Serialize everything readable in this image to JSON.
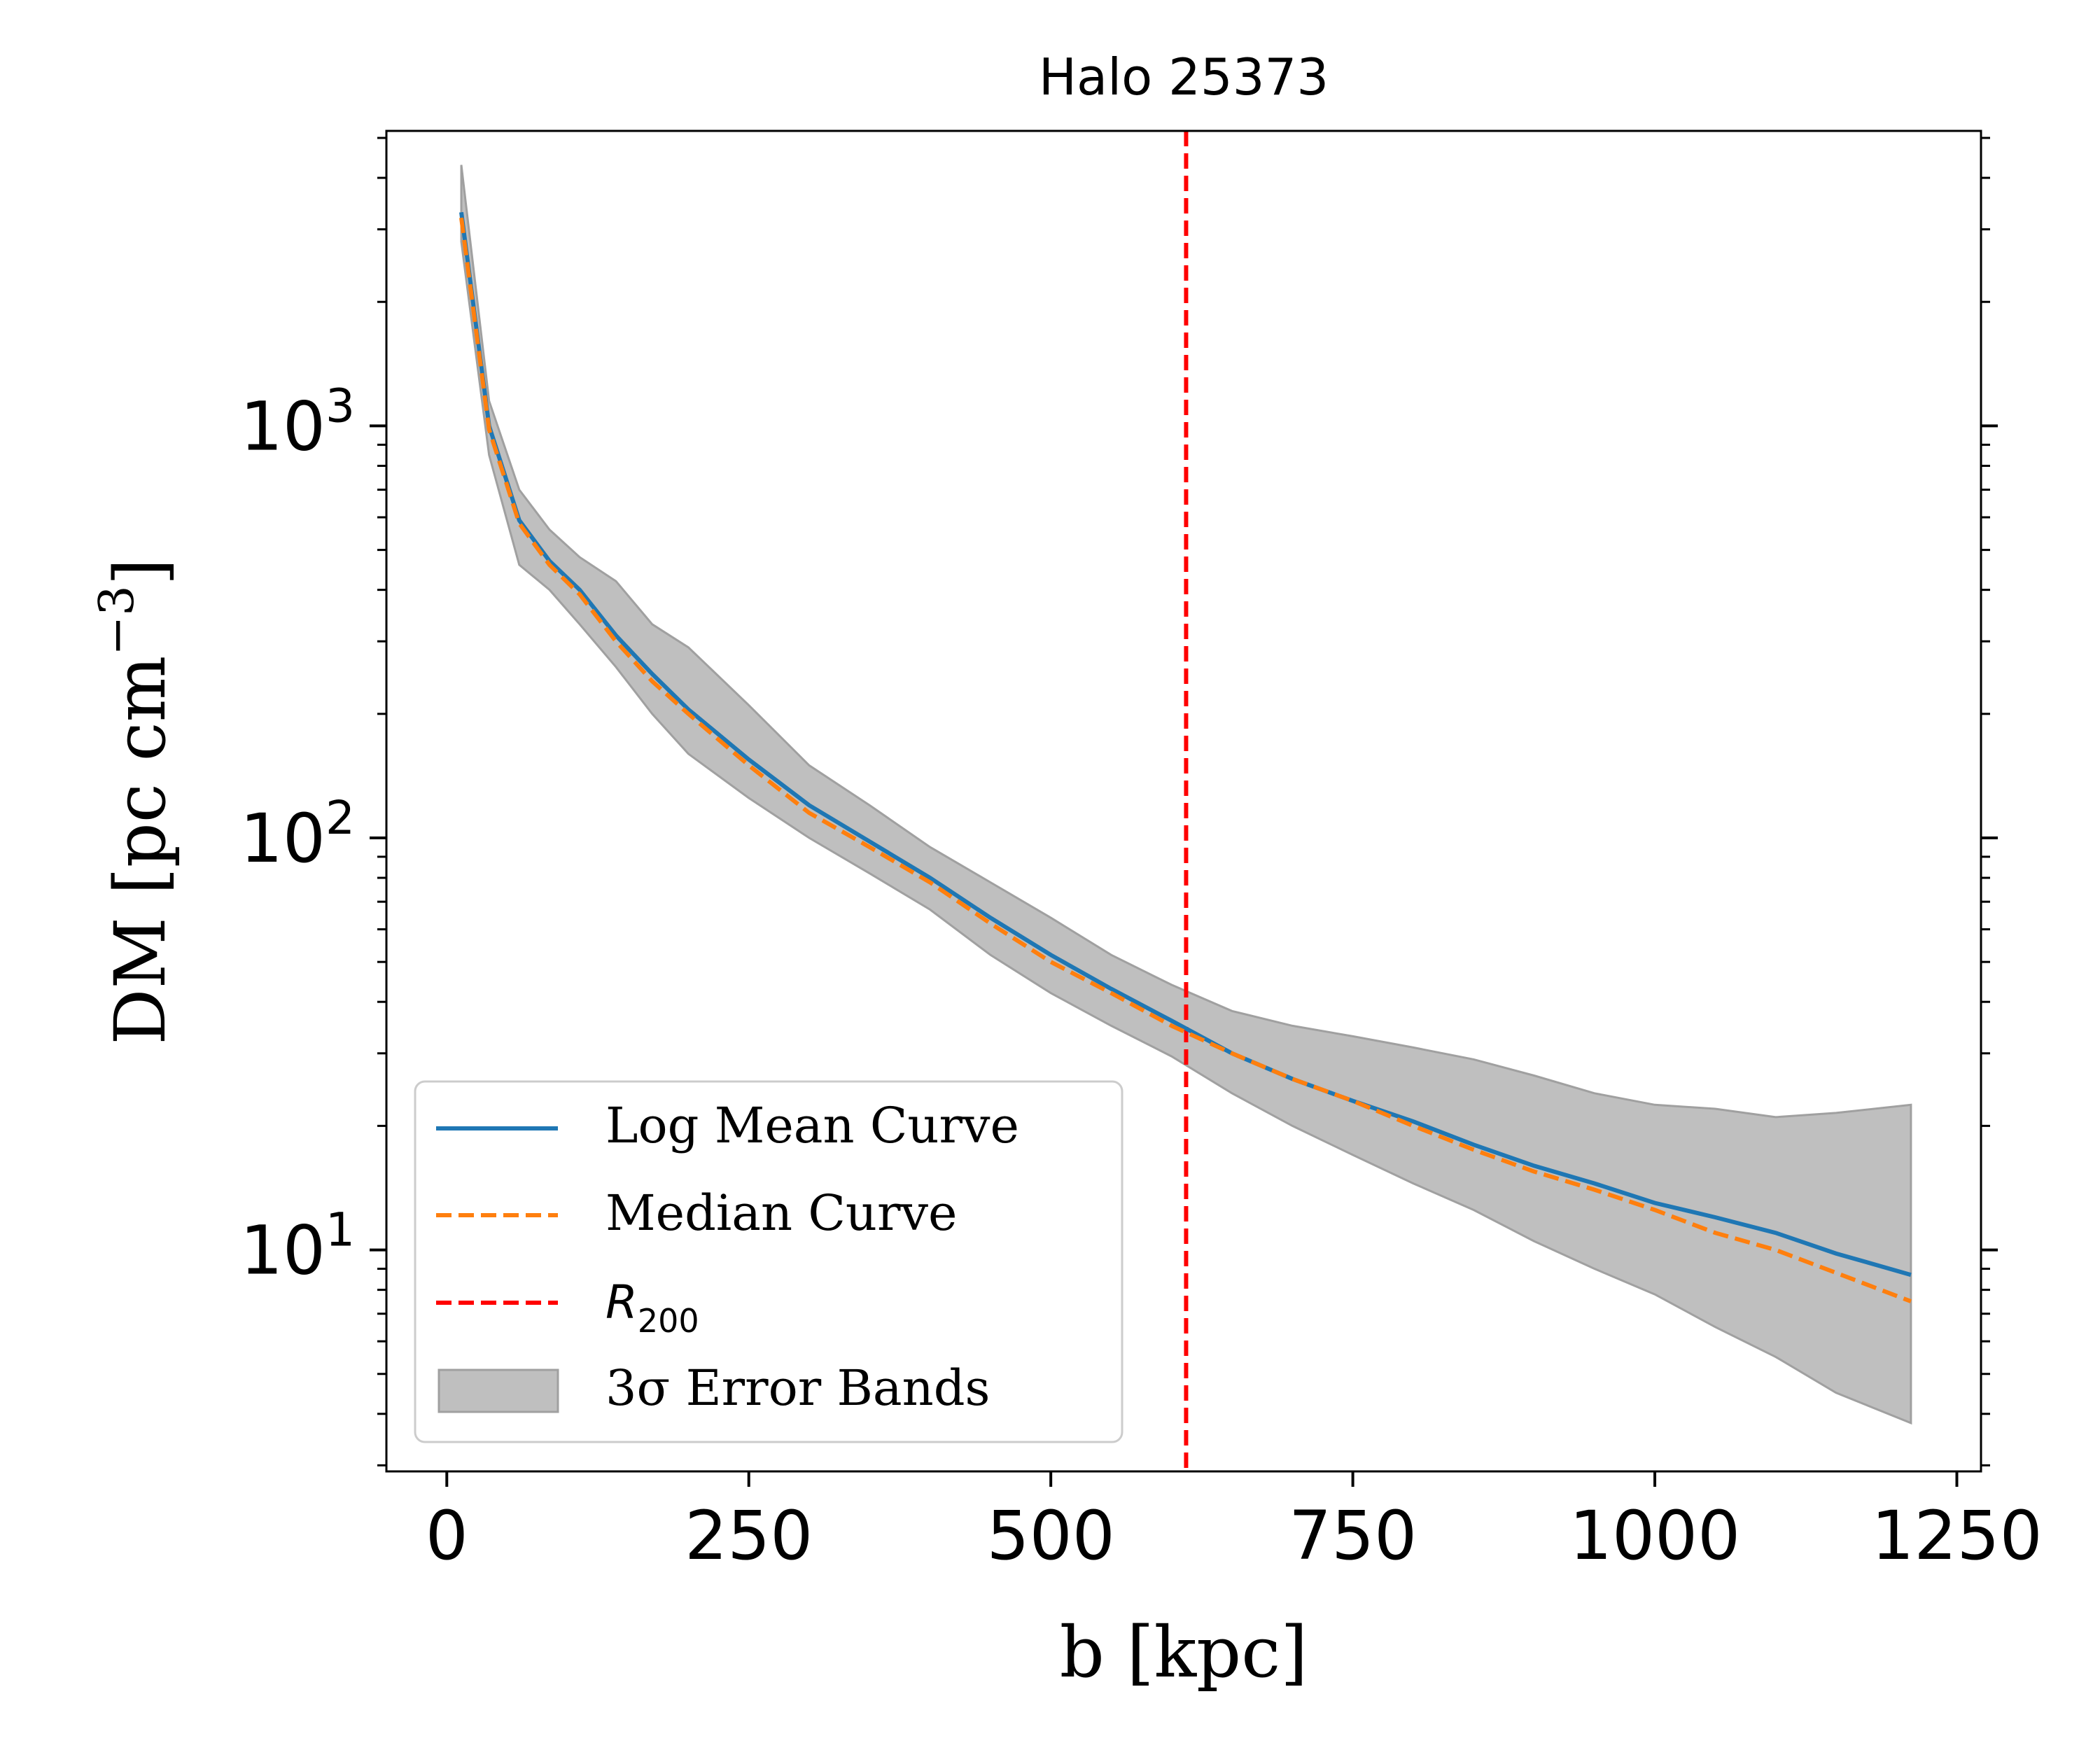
{
  "chart_data": {
    "type": "line",
    "title": "Halo 25373",
    "xlabel": "b [kpc]",
    "ylabel": {
      "main": "DM [pc cm",
      "sup": "−3",
      "end": "]"
    },
    "xlim": [
      -50,
      1270
    ],
    "ylim": [
      2.9,
      5200
    ],
    "yscale": "log",
    "grid": false,
    "legend_position": "lower-left",
    "xticks": [
      0,
      250,
      500,
      750,
      1000,
      1250
    ],
    "xtick_labels": [
      "0",
      "250",
      "500",
      "750",
      "1000",
      "1250"
    ],
    "yticks": [
      10,
      100,
      1000
    ],
    "ytick_labels": [
      {
        "base": "10",
        "exp": "1"
      },
      {
        "base": "10",
        "exp": "2"
      },
      {
        "base": "10",
        "exp": "3"
      }
    ],
    "x": [
      12,
      35,
      60,
      85,
      110,
      140,
      170,
      200,
      250,
      300,
      350,
      400,
      450,
      500,
      550,
      600,
      650,
      700,
      750,
      800,
      850,
      900,
      950,
      1000,
      1050,
      1100,
      1150,
      1212
    ],
    "series": [
      {
        "name": "Log Mean Curve",
        "color": "#1f77b4",
        "style": "solid",
        "values": [
          3300,
          1000,
          590,
          470,
          400,
          310,
          250,
          205,
          155,
          120,
          98,
          80,
          64,
          52,
          43,
          36,
          30,
          26,
          23,
          20.5,
          18,
          16,
          14.5,
          13,
          12,
          11,
          9.8,
          8.7
        ]
      },
      {
        "name": "Median Curve",
        "color": "#ff7f0e",
        "style": "dashed",
        "values": [
          3200,
          980,
          580,
          460,
          390,
          300,
          240,
          200,
          150,
          115,
          95,
          78,
          62,
          50,
          42,
          35,
          30,
          26,
          23,
          20,
          17.5,
          15.5,
          14,
          12.5,
          11,
          10,
          8.8,
          7.5
        ]
      }
    ],
    "band": {
      "name": "3σ Error Bands",
      "color": "#bfbfbf",
      "edge": "#a0a0a0",
      "upper": [
        4300,
        1150,
        700,
        560,
        480,
        420,
        330,
        290,
        210,
        150,
        120,
        95,
        78,
        64,
        52,
        44,
        38,
        35,
        33,
        31,
        29,
        26.5,
        24,
        22.5,
        22,
        21,
        21.5,
        22.5
      ],
      "lower": [
        2800,
        850,
        460,
        400,
        330,
        260,
        200,
        160,
        125,
        100,
        82,
        67,
        52,
        42,
        35,
        29.5,
        24,
        20,
        17,
        14.5,
        12.5,
        10.5,
        9,
        7.8,
        6.5,
        5.5,
        4.5,
        3.8
      ]
    },
    "vline": {
      "name": "R200",
      "value": 612,
      "color": "#ff0000"
    },
    "legend": [
      {
        "label": "Log Mean Curve"
      },
      {
        "label": "Median Curve"
      },
      {
        "label": "R",
        "sub": "200"
      },
      {
        "label": "3σ Error Bands"
      }
    ]
  }
}
